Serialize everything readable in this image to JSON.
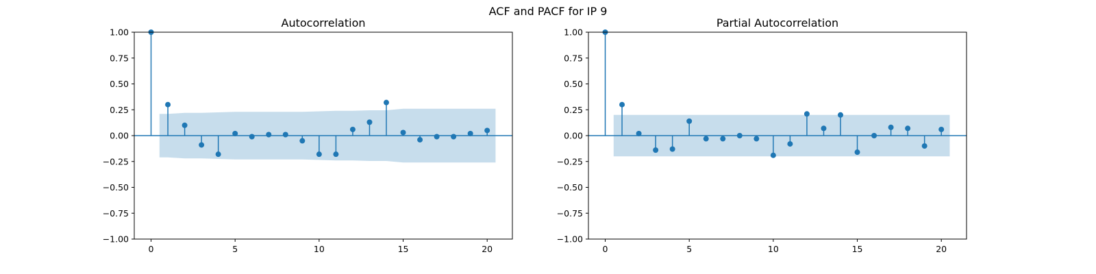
{
  "figure": {
    "suptitle": "ACF and PACF for IP 9"
  },
  "colors": {
    "stem": "#1f77b4",
    "confidence_band": "#1f77b4"
  },
  "chart_data": [
    {
      "type": "stem",
      "title": "Autocorrelation",
      "xlim": [
        -1,
        21.5
      ],
      "ylim": [
        -1.0,
        1.0
      ],
      "xticks": [
        0,
        5,
        10,
        15,
        20
      ],
      "yticks": [
        -1.0,
        -0.75,
        -0.5,
        -0.25,
        0.0,
        0.25,
        0.5,
        0.75,
        1.0
      ],
      "xtick_labels": [
        "0",
        "5",
        "10",
        "15",
        "20"
      ],
      "ytick_labels": [
        "−1.00",
        "−0.75",
        "−0.50",
        "−0.25",
        "0.00",
        "0.25",
        "0.50",
        "0.75",
        "1.00"
      ],
      "lags": [
        0,
        1,
        2,
        3,
        4,
        5,
        6,
        7,
        8,
        9,
        10,
        11,
        12,
        13,
        14,
        15,
        16,
        17,
        18,
        19,
        20
      ],
      "values": [
        1.0,
        0.3,
        0.1,
        -0.09,
        -0.18,
        0.02,
        -0.01,
        0.01,
        0.01,
        -0.05,
        -0.18,
        -0.18,
        0.06,
        0.13,
        0.32,
        0.03,
        -0.04,
        -0.01,
        -0.01,
        0.02,
        0.05
      ],
      "confidence_band": [
        [
          0.5,
          0.21
        ],
        [
          1.0,
          0.21
        ],
        [
          2,
          0.22
        ],
        [
          3,
          0.22
        ],
        [
          4,
          0.225
        ],
        [
          5,
          0.23
        ],
        [
          6,
          0.23
        ],
        [
          7,
          0.23
        ],
        [
          8,
          0.23
        ],
        [
          9,
          0.23
        ],
        [
          10,
          0.235
        ],
        [
          11,
          0.24
        ],
        [
          12,
          0.24
        ],
        [
          13,
          0.245
        ],
        [
          14,
          0.245
        ],
        [
          15,
          0.26
        ],
        [
          16,
          0.26
        ],
        [
          17,
          0.26
        ],
        [
          18,
          0.26
        ],
        [
          19,
          0.26
        ],
        [
          20,
          0.26
        ],
        [
          20.5,
          0.26
        ]
      ]
    },
    {
      "type": "stem",
      "title": "Partial Autocorrelation",
      "xlim": [
        -1,
        21.5
      ],
      "ylim": [
        -1.0,
        1.0
      ],
      "xticks": [
        0,
        5,
        10,
        15,
        20
      ],
      "yticks": [
        -1.0,
        -0.75,
        -0.5,
        -0.25,
        0.0,
        0.25,
        0.5,
        0.75,
        1.0
      ],
      "xtick_labels": [
        "0",
        "5",
        "10",
        "15",
        "20"
      ],
      "ytick_labels": [
        "−1.00",
        "−0.75",
        "−0.50",
        "−0.25",
        "0.00",
        "0.25",
        "0.50",
        "0.75",
        "1.00"
      ],
      "lags": [
        0,
        1,
        2,
        3,
        4,
        5,
        6,
        7,
        8,
        9,
        10,
        11,
        12,
        13,
        14,
        15,
        16,
        17,
        18,
        19,
        20
      ],
      "values": [
        1.0,
        0.3,
        0.02,
        -0.14,
        -0.13,
        0.14,
        -0.03,
        -0.03,
        0.0,
        -0.03,
        -0.19,
        -0.08,
        0.21,
        0.07,
        0.2,
        -0.16,
        0.0,
        0.08,
        0.07,
        -0.1,
        0.06
      ],
      "confidence_band": [
        [
          0.5,
          0.2
        ],
        [
          20.5,
          0.2
        ]
      ]
    }
  ]
}
